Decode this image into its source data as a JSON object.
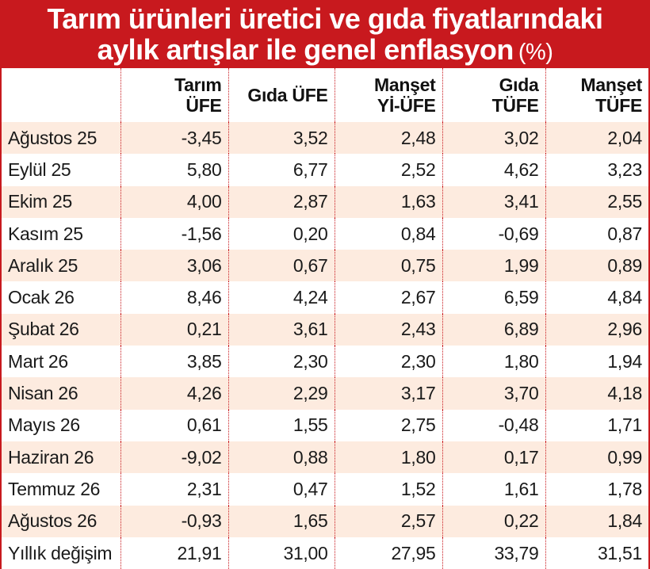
{
  "title": {
    "line1": "Tarım ürünleri üretici ve gıda fiyatlarındaki",
    "line2": "aylık artışlar ile genel enflasyon",
    "unit": "(%)"
  },
  "columns": [
    {
      "line1": "Tarım",
      "line2": "ÜFE"
    },
    {
      "line1": "Gıda ÜFE",
      "line2": ""
    },
    {
      "line1": "Manşet",
      "line2": "Yİ-ÜFE"
    },
    {
      "line1": "Gıda",
      "line2": "TÜFE"
    },
    {
      "line1": "Manşet",
      "line2": "TÜFE"
    }
  ],
  "rows": [
    {
      "label": "Ağustos 25",
      "values": [
        "-3,45",
        "3,52",
        "2,48",
        "3,02",
        "2,04"
      ]
    },
    {
      "label": "Eylül 25",
      "values": [
        "5,80",
        "6,77",
        "2,52",
        "4,62",
        "3,23"
      ]
    },
    {
      "label": "Ekim 25",
      "values": [
        "4,00",
        "2,87",
        "1,63",
        "3,41",
        "2,55"
      ]
    },
    {
      "label": "Kasım 25",
      "values": [
        "-1,56",
        "0,20",
        "0,84",
        "-0,69",
        "0,87"
      ]
    },
    {
      "label": "Aralık 25",
      "values": [
        "3,06",
        "0,67",
        "0,75",
        "1,99",
        "0,89"
      ]
    },
    {
      "label": "Ocak 26",
      "values": [
        "8,46",
        "4,24",
        "2,67",
        "6,59",
        "4,84"
      ]
    },
    {
      "label": "Şubat 26",
      "values": [
        "0,21",
        "3,61",
        "2,43",
        "6,89",
        "2,96"
      ]
    },
    {
      "label": "Mart 26",
      "values": [
        "3,85",
        "2,30",
        "2,30",
        "1,80",
        "1,94"
      ]
    },
    {
      "label": "Nisan 26",
      "values": [
        "4,26",
        "2,29",
        "3,17",
        "3,70",
        "4,18"
      ]
    },
    {
      "label": "Mayıs 26",
      "values": [
        "0,61",
        "1,55",
        "2,75",
        "-0,48",
        "1,71"
      ]
    },
    {
      "label": "Haziran 26",
      "values": [
        "-9,02",
        "0,88",
        "1,80",
        "0,17",
        "0,99"
      ]
    },
    {
      "label": "Temmuz 26",
      "values": [
        "2,31",
        "0,47",
        "1,52",
        "1,61",
        "1,78"
      ]
    },
    {
      "label": "Ağustos 26",
      "values": [
        "-0,93",
        "1,65",
        "2,57",
        "0,22",
        "1,84"
      ]
    },
    {
      "label": "Yıllık değişim",
      "values": [
        "21,91",
        "31,00",
        "27,95",
        "33,79",
        "31,51"
      ]
    }
  ],
  "colors": {
    "accent": "#c8191e",
    "stripe": "#fdebdf",
    "text": "#1a1a1a"
  }
}
